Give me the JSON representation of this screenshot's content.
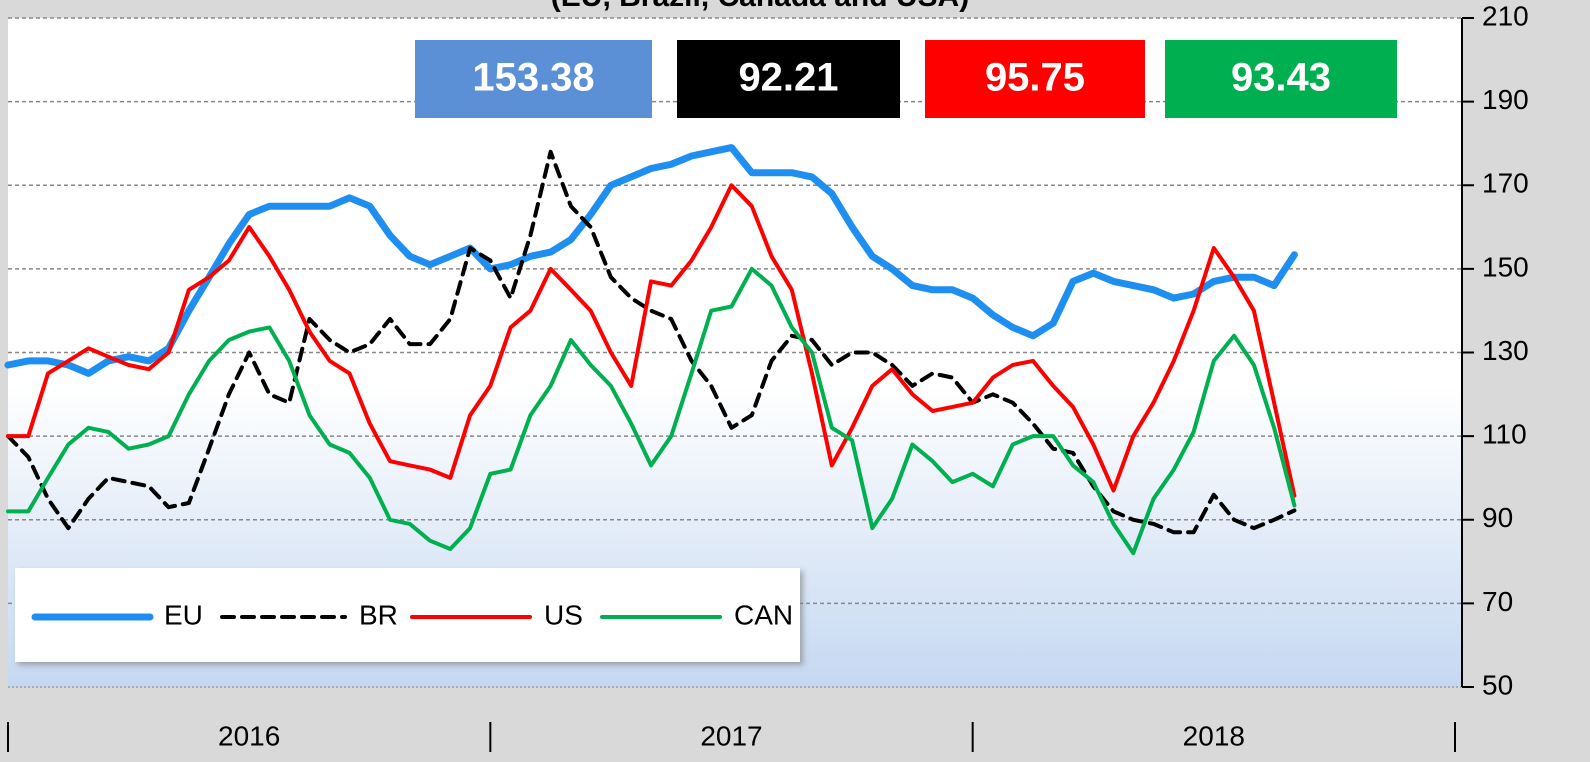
{
  "chart_data": {
    "type": "line",
    "title": "(EU, Brazil, Canada and USA)",
    "categories": [
      "2016",
      "2017",
      "2018"
    ],
    "xlim": [
      2016,
      2019
    ],
    "x": [
      2016,
      2016.042,
      2016.083,
      2016.125,
      2016.167,
      2016.208,
      2016.25,
      2016.292,
      2016.333,
      2016.375,
      2016.417,
      2016.458,
      2016.5,
      2016.542,
      2016.583,
      2016.625,
      2016.667,
      2016.708,
      2016.75,
      2016.792,
      2016.833,
      2016.875,
      2016.917,
      2016.958,
      2017,
      2017.042,
      2017.083,
      2017.125,
      2017.167,
      2017.208,
      2017.25,
      2017.292,
      2017.333,
      2017.375,
      2017.417,
      2017.458,
      2017.5,
      2017.542,
      2017.583,
      2017.625,
      2017.667,
      2017.708,
      2017.75,
      2017.792,
      2017.833,
      2017.875,
      2017.917,
      2017.958,
      2018,
      2018.042,
      2018.083,
      2018.125,
      2018.167,
      2018.208,
      2018.25,
      2018.292,
      2018.333,
      2018.375,
      2018.417,
      2018.458,
      2018.5,
      2018.542,
      2018.583,
      2018.625,
      2018.667
    ],
    "ylim": [
      50,
      210
    ],
    "yticks": [
      50,
      70,
      90,
      110,
      130,
      150,
      170,
      190,
      210
    ],
    "grid": true,
    "legend": "lower left",
    "series": [
      {
        "name": "EU",
        "color": "#1e8ff0",
        "style": "solid",
        "values": [
          127,
          128,
          128,
          127,
          125,
          128,
          129,
          128,
          131,
          140,
          148,
          156,
          163,
          165,
          165,
          165,
          165,
          167,
          165,
          158,
          153,
          151,
          153,
          155,
          150,
          151,
          153,
          154,
          157,
          163,
          170,
          172,
          174,
          175,
          177,
          178,
          179,
          173,
          173,
          173,
          172,
          168,
          160,
          153,
          150,
          146,
          145,
          145,
          143,
          139,
          136,
          134,
          137,
          147,
          149,
          147,
          146,
          145,
          143,
          144,
          147,
          148,
          148,
          146,
          153.38
        ]
      },
      {
        "name": "BR",
        "color": "#000000",
        "style": "dashed",
        "values": [
          110,
          105,
          95,
          88,
          95,
          100,
          99,
          98,
          93,
          94,
          107,
          120,
          130,
          120,
          118,
          138,
          133,
          130,
          132,
          138,
          132,
          132,
          138,
          155,
          152,
          143,
          158,
          178,
          165,
          160,
          148,
          143,
          140,
          138,
          128,
          122,
          112,
          115,
          128,
          134,
          133,
          127,
          130,
          130,
          127,
          122,
          125,
          124,
          118,
          120,
          118,
          113,
          107,
          106,
          98,
          92,
          90,
          89,
          87,
          87,
          96,
          90,
          88,
          90,
          92.21
        ]
      },
      {
        "name": "US",
        "color": "#ff0000",
        "style": "solid",
        "values": [
          110,
          110,
          125,
          128,
          131,
          129,
          127,
          126,
          130,
          145,
          148,
          152,
          160,
          153,
          145,
          135,
          128,
          125,
          113,
          104,
          103,
          102,
          100,
          115,
          122,
          136,
          140,
          150,
          145,
          140,
          130,
          122,
          147,
          146,
          152,
          160,
          170,
          165,
          153,
          145,
          125,
          103,
          112,
          122,
          126,
          120,
          116,
          117,
          118,
          124,
          127,
          128,
          122,
          117,
          108,
          97,
          110,
          118,
          128,
          140,
          155,
          148,
          140,
          118,
          95.75
        ]
      },
      {
        "name": "CAN",
        "color": "#00b050",
        "style": "solid",
        "values": [
          92,
          92,
          100,
          108,
          112,
          111,
          107,
          108,
          110,
          120,
          128,
          133,
          135,
          136,
          128,
          115,
          108,
          106,
          100,
          90,
          89,
          85,
          83,
          88,
          101,
          102,
          115,
          122,
          133,
          127,
          122,
          113,
          103,
          110,
          125,
          140,
          141,
          150,
          146,
          136,
          130,
          112,
          109,
          88,
          95,
          108,
          104,
          99,
          101,
          98,
          108,
          110,
          110,
          103,
          99,
          89,
          82,
          95,
          102,
          111,
          128,
          134,
          127,
          112,
          93.43
        ]
      }
    ]
  }
}
